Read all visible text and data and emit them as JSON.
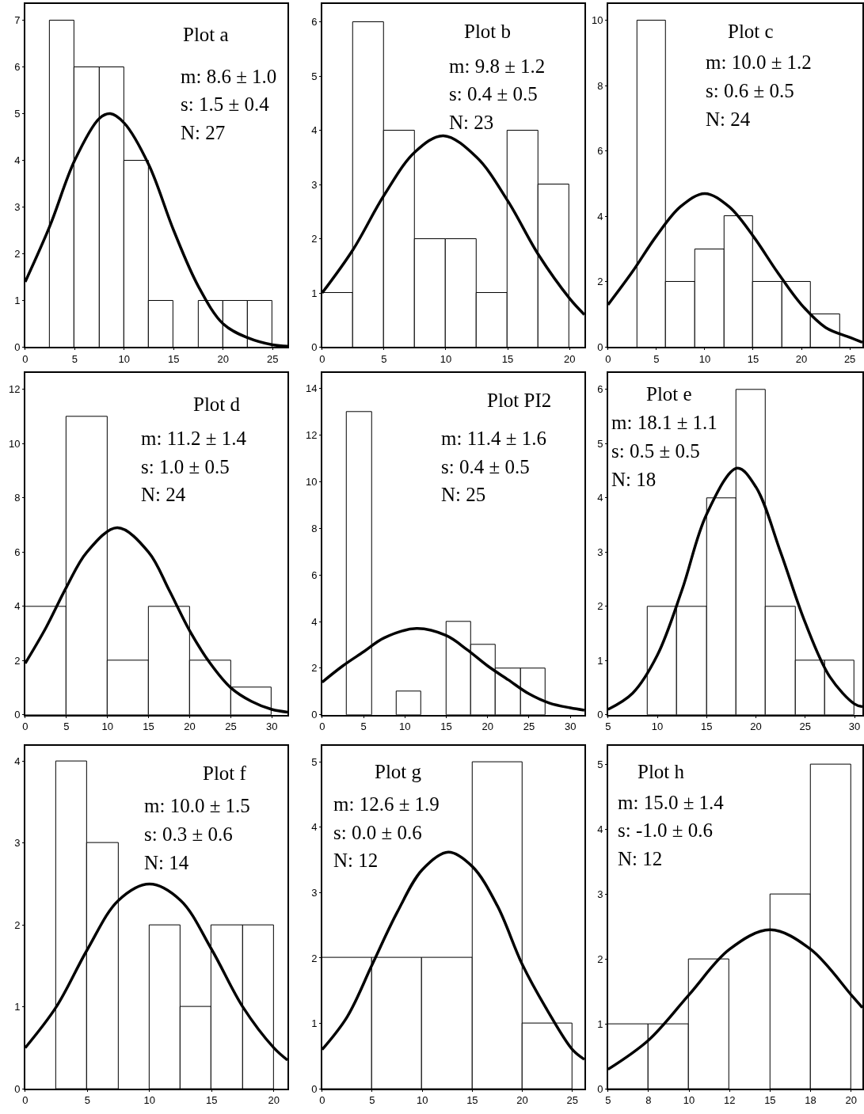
{
  "chart_data": [
    {
      "type": "histogram",
      "title": "Plot a",
      "annotations": [
        "m: 8.6 ± 1.0",
        "s: 1.5 ± 0.4",
        "N: 27"
      ],
      "bins": [
        2.5,
        5,
        7.5,
        10,
        12.5,
        15,
        17.5,
        20,
        22.5,
        25
      ],
      "values": [
        7,
        6,
        6,
        4,
        1,
        0,
        1,
        1,
        1
      ],
      "color": "#ffffff",
      "xlim": [
        0,
        26.5
      ],
      "xticks": [
        0,
        5,
        10,
        15,
        20,
        25
      ],
      "ylim": [
        0,
        7.35
      ],
      "yticks": [
        0,
        1,
        2,
        3,
        4,
        5,
        6,
        7
      ],
      "series": [
        {
          "type": "line",
          "color": "#000000",
          "x": [
            0,
            2.5,
            5,
            7.5,
            8.6,
            10,
            12.5,
            15,
            17.5,
            20,
            22.5,
            25,
            26.5
          ],
          "values": [
            1.4,
            2.6,
            4.0,
            4.9,
            5.0,
            4.8,
            3.9,
            2.5,
            1.3,
            0.5,
            0.2,
            0.05,
            0.02
          ]
        }
      ]
    },
    {
      "type": "histogram",
      "title": "Plot b",
      "annotations": [
        "m: 9.8 ± 1.2",
        "s: 0.4 ± 0.5",
        "N: 23"
      ],
      "bins": [
        0,
        2.5,
        5,
        7.5,
        10,
        12.5,
        15,
        17.5,
        20
      ],
      "values": [
        1,
        6,
        4,
        2,
        2,
        1,
        4,
        3
      ],
      "color": "#ffffff",
      "xlim": [
        0,
        21.2
      ],
      "xticks": [
        0,
        5,
        10,
        15,
        20
      ],
      "ylim": [
        0,
        6.33
      ],
      "yticks": [
        0,
        1,
        2,
        3,
        4,
        5,
        6
      ],
      "series": [
        {
          "type": "line",
          "color": "#000000",
          "x": [
            0,
            2.5,
            5,
            7.5,
            9.8,
            12.5,
            15,
            17.5,
            20,
            21.2
          ],
          "values": [
            1.0,
            1.8,
            2.8,
            3.6,
            3.9,
            3.5,
            2.7,
            1.7,
            0.9,
            0.6
          ]
        }
      ]
    },
    {
      "type": "histogram",
      "title": "Plot c",
      "annotations": [
        "m: 10.0 ± 1.2",
        "s: 0.6 ± 0.5",
        "N: 24"
      ],
      "bins": [
        3,
        6,
        9,
        12,
        15,
        18,
        21,
        24
      ],
      "values": [
        10,
        2,
        3,
        4,
        2,
        2,
        1
      ],
      "color": "#ffffff",
      "xlim": [
        0,
        26.3
      ],
      "xticks": [
        0,
        5,
        10,
        15,
        20,
        25
      ],
      "ylim": [
        0,
        10.5
      ],
      "yticks": [
        0,
        2,
        4,
        6,
        8,
        10
      ],
      "series": [
        {
          "type": "line",
          "color": "#000000",
          "x": [
            0,
            2.5,
            5,
            7.5,
            10,
            12.5,
            15,
            17.5,
            20,
            22.5,
            25,
            26.3
          ],
          "values": [
            1.3,
            2.3,
            3.4,
            4.3,
            4.7,
            4.3,
            3.4,
            2.3,
            1.3,
            0.6,
            0.3,
            0.15
          ]
        }
      ]
    },
    {
      "type": "histogram",
      "title": "Plot d",
      "annotations": [
        "m: 11.2 ± 1.4",
        "s: 1.0 ± 0.5",
        "N: 24"
      ],
      "bins": [
        0,
        5,
        10,
        15,
        20,
        25,
        30
      ],
      "values": [
        4,
        11,
        2,
        4,
        2,
        1
      ],
      "color": "#ffffff",
      "xlim": [
        0,
        31.9
      ],
      "xticks": [
        0,
        5,
        10,
        15,
        20,
        25,
        30
      ],
      "ylim": [
        0,
        12.6
      ],
      "yticks": [
        0,
        2,
        4,
        6,
        8,
        10,
        12
      ],
      "series": [
        {
          "type": "line",
          "color": "#000000",
          "x": [
            0,
            2.5,
            5,
            7.5,
            11.2,
            15,
            17.5,
            20,
            22.5,
            25,
            27.5,
            30,
            31.9
          ],
          "values": [
            1.9,
            3.2,
            4.7,
            6.0,
            6.9,
            6.0,
            4.6,
            3.1,
            1.9,
            1.0,
            0.5,
            0.2,
            0.1
          ]
        }
      ]
    },
    {
      "type": "histogram",
      "title": "Plot PI2",
      "annotations": [
        "m: 11.4 ± 1.6",
        "s: 0.4 ± 0.5",
        "N: 25"
      ],
      "bins": [
        3,
        6,
        9,
        12,
        15,
        18,
        21,
        24,
        27
      ],
      "values": [
        13,
        0,
        1,
        0,
        4,
        3,
        2,
        2
      ],
      "color": "#ffffff",
      "xlim": [
        0,
        31.7
      ],
      "xticks": [
        0,
        5,
        10,
        15,
        20,
        25,
        30
      ],
      "ylim": [
        0,
        14.65
      ],
      "yticks": [
        0,
        2,
        4,
        6,
        8,
        10,
        12,
        14
      ],
      "series": [
        {
          "type": "line",
          "color": "#000000",
          "x": [
            0,
            2.5,
            5,
            7.5,
            11.4,
            15,
            17.5,
            20,
            22.5,
            25,
            27.5,
            30,
            31.7
          ],
          "values": [
            1.4,
            2.1,
            2.7,
            3.3,
            3.7,
            3.4,
            2.8,
            2.1,
            1.5,
            0.9,
            0.5,
            0.3,
            0.2
          ]
        }
      ]
    },
    {
      "type": "histogram",
      "title": "Plot e",
      "annotations": [
        "m: 18.1 ± 1.1",
        "s: 0.5 ± 0.5",
        "N: 18"
      ],
      "bins": [
        9,
        12,
        15,
        18,
        21,
        24,
        27,
        30
      ],
      "values": [
        2,
        2,
        4,
        6,
        2,
        1,
        1
      ],
      "color": "#ffffff",
      "xlim": [
        5,
        30.8
      ],
      "xticks": [
        5,
        10,
        15,
        20,
        25,
        30
      ],
      "ylim": [
        0,
        6.3
      ],
      "yticks": [
        0,
        1,
        2,
        3,
        4,
        5,
        6
      ],
      "series": [
        {
          "type": "line",
          "color": "#000000",
          "x": [
            5,
            7.5,
            10,
            12.5,
            15,
            18.1,
            20,
            22.5,
            25,
            27.5,
            30,
            30.8
          ],
          "values": [
            0.1,
            0.4,
            1.1,
            2.3,
            3.7,
            4.55,
            4.2,
            3.0,
            1.7,
            0.7,
            0.2,
            0.15
          ]
        }
      ]
    },
    {
      "type": "histogram",
      "title": "Plot f",
      "annotations": [
        "m: 10.0 ± 1.5",
        "s: 0.3 ± 0.6",
        "N: 14"
      ],
      "bins": [
        2.5,
        5,
        7.5,
        10,
        12.5,
        15,
        17.5,
        20
      ],
      "values": [
        4,
        3,
        0,
        2,
        1,
        2,
        2
      ],
      "color": "#ffffff",
      "xlim": [
        0,
        21.1
      ],
      "xticks": [
        0,
        5,
        10,
        15,
        20
      ],
      "ylim": [
        0,
        4.19
      ],
      "yticks": [
        0,
        1,
        2,
        3,
        4
      ],
      "series": [
        {
          "type": "line",
          "color": "#000000",
          "x": [
            0,
            2.5,
            5,
            7.5,
            10,
            12.5,
            15,
            17.5,
            20,
            21.1
          ],
          "values": [
            0.5,
            1.0,
            1.7,
            2.3,
            2.5,
            2.3,
            1.7,
            1.0,
            0.5,
            0.35
          ]
        }
      ]
    },
    {
      "type": "histogram",
      "title": "Plot g",
      "annotations": [
        "m: 12.6 ± 1.9",
        "s: 0.0 ± 0.6",
        "N: 12"
      ],
      "bins": [
        0,
        5,
        10,
        15,
        20,
        25
      ],
      "values": [
        2,
        2,
        2,
        5,
        1
      ],
      "color": "#ffffff",
      "xlim": [
        0,
        26.2
      ],
      "xticks": [
        0,
        5,
        10,
        15,
        20,
        25
      ],
      "ylim": [
        0,
        5.25
      ],
      "yticks": [
        0,
        1,
        2,
        3,
        4,
        5
      ],
      "series": [
        {
          "type": "line",
          "color": "#000000",
          "x": [
            0,
            2.5,
            5,
            7.5,
            10,
            12.6,
            15,
            17.5,
            20,
            22.5,
            25,
            26.2
          ],
          "values": [
            0.6,
            1.1,
            1.9,
            2.7,
            3.35,
            3.62,
            3.4,
            2.8,
            1.9,
            1.2,
            0.6,
            0.45
          ]
        }
      ]
    },
    {
      "type": "histogram",
      "title": "Plot h",
      "annotations": [
        "m: 15.0 ± 1.4",
        "s: -1.0 ± 0.6",
        "N: 12"
      ],
      "bins": [
        5,
        7.5,
        10,
        12.5,
        15,
        17.5,
        20
      ],
      "values": [
        1,
        1,
        2,
        0,
        3,
        5
      ],
      "color": "#ffffff",
      "xlim": [
        5,
        20.7
      ],
      "xticks": [
        5,
        {
          "value": 7.5,
          "label": "8"
        },
        10,
        {
          "value": 12.5,
          "label": "12"
        },
        15,
        {
          "value": 17.5,
          "label": "18"
        },
        20
      ],
      "ylim": [
        0,
        5.29
      ],
      "yticks": [
        0,
        1,
        2,
        3,
        4,
        5
      ],
      "series": [
        {
          "type": "line",
          "color": "#000000",
          "x": [
            5,
            7.5,
            10,
            12.5,
            15,
            17.5,
            20,
            20.7
          ],
          "values": [
            0.3,
            0.75,
            1.45,
            2.15,
            2.45,
            2.15,
            1.45,
            1.25
          ]
        }
      ]
    }
  ]
}
